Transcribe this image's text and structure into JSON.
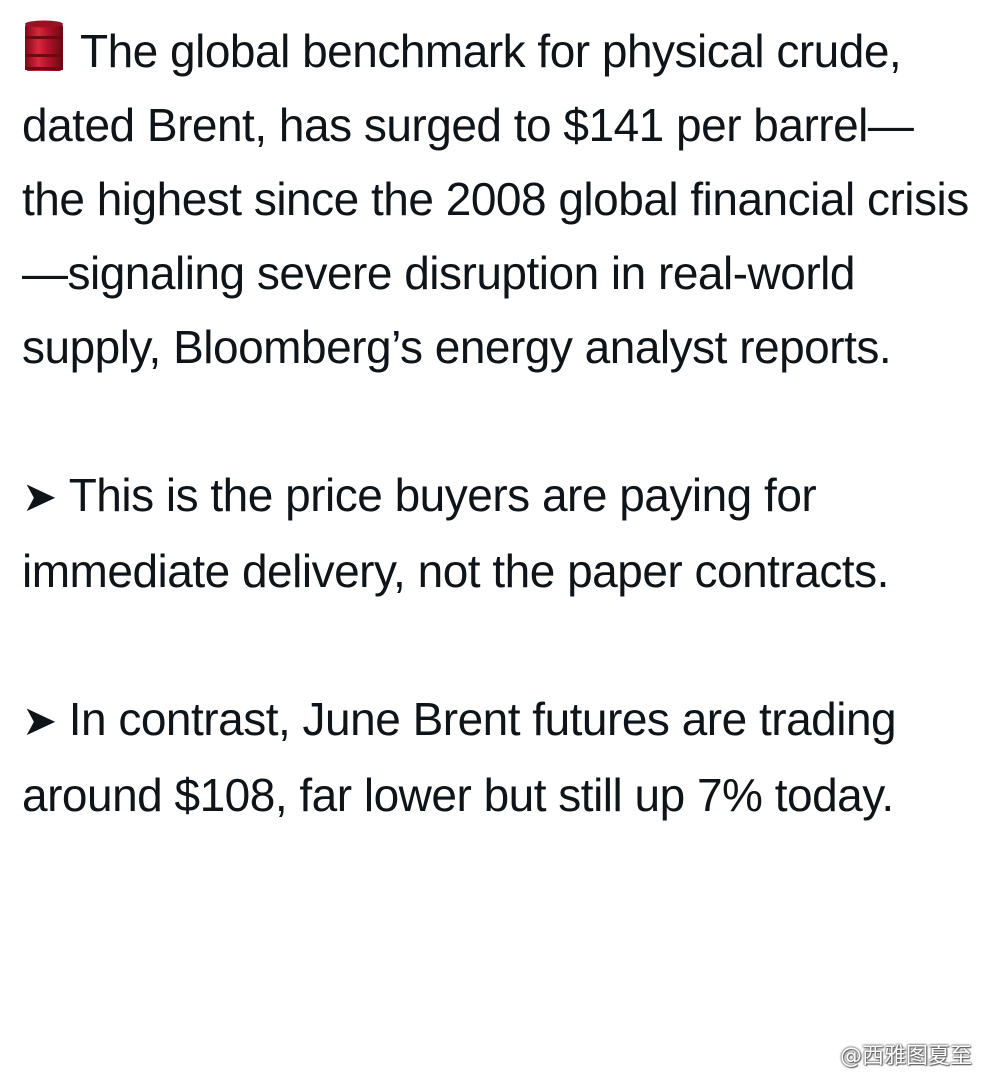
{
  "post": {
    "paragraphs": [
      {
        "icon": "oil-drum-icon",
        "text": "The global benchmark for physical crude, dated Brent, has surged to $141 per barrel—the highest since the 2008 global financial crisis—signaling severe disruption in real-world supply, Bloomberg’s energy analyst reports."
      },
      {
        "icon": "arrow-icon",
        "bullet": "➤",
        "text": "This is the price buyers are paying for immediate delivery, not the paper contracts."
      },
      {
        "icon": "arrow-icon",
        "bullet": "➤",
        "text": "In contrast, June Brent futures are trading around $108, far lower but still up 7% today."
      }
    ]
  },
  "watermark": {
    "icon": "weibo-icon",
    "text": "@西雅图夏至"
  },
  "colors": {
    "text": "#0f1419",
    "background": "#ffffff",
    "drum": "#b3122a"
  }
}
